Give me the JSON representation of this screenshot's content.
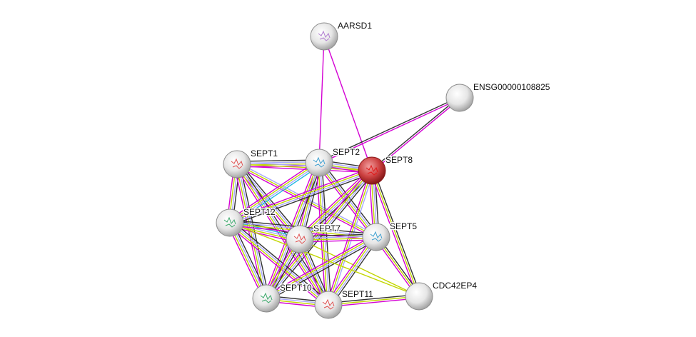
{
  "evidence_colors": {
    "experiments": "#d400d4",
    "textmining": "#c2d600",
    "coexpression": "#333333",
    "homology": "#a8a8ff",
    "databases": "#22b8e0"
  },
  "query_node_color": "#c83232",
  "nodes": [
    {
      "id": "AARSD1",
      "label": "AARSD1",
      "structure": true
    },
    {
      "id": "ENSG00000108825",
      "label": "ENSG00000108825",
      "structure": false
    },
    {
      "id": "SEPT1",
      "label": "SEPT1",
      "structure": true
    },
    {
      "id": "SEPT2",
      "label": "SEPT2",
      "structure": true
    },
    {
      "id": "SEPT8",
      "label": "SEPT8",
      "structure": true,
      "query": true
    },
    {
      "id": "SEPT12",
      "label": "SEPT12",
      "structure": true
    },
    {
      "id": "SEPT7",
      "label": "SEPT7",
      "structure": true
    },
    {
      "id": "SEPT5",
      "label": "SEPT5",
      "structure": true
    },
    {
      "id": "CDC42EP4",
      "label": "CDC42EP4",
      "structure": false
    },
    {
      "id": "SEPT10",
      "label": "SEPT10",
      "structure": true
    },
    {
      "id": "SEPT11",
      "label": "SEPT11",
      "structure": true
    }
  ],
  "edges": [
    {
      "source": "AARSD1",
      "target": "SEPT2",
      "evidence": [
        "experiments"
      ]
    },
    {
      "source": "AARSD1",
      "target": "SEPT8",
      "evidence": [
        "experiments"
      ]
    },
    {
      "source": "ENSG00000108825",
      "target": "SEPT2",
      "evidence": [
        "experiments",
        "coexpression"
      ]
    },
    {
      "source": "ENSG00000108825",
      "target": "SEPT8",
      "evidence": [
        "experiments",
        "coexpression"
      ]
    },
    {
      "source": "SEPT1",
      "target": "SEPT2",
      "evidence": [
        "coexpression",
        "homology",
        "textmining",
        "experiments"
      ]
    },
    {
      "source": "SEPT1",
      "target": "SEPT8",
      "evidence": [
        "homology",
        "textmining",
        "experiments"
      ]
    },
    {
      "source": "SEPT1",
      "target": "SEPT12",
      "evidence": [
        "coexpression",
        "homology",
        "textmining",
        "experiments"
      ]
    },
    {
      "source": "SEPT1",
      "target": "SEPT7",
      "evidence": [
        "coexpression",
        "homology",
        "textmining",
        "experiments"
      ]
    },
    {
      "source": "SEPT1",
      "target": "SEPT5",
      "evidence": [
        "homology",
        "textmining",
        "experiments"
      ]
    },
    {
      "source": "SEPT1",
      "target": "SEPT10",
      "evidence": [
        "coexpression",
        "homology",
        "textmining",
        "experiments"
      ]
    },
    {
      "source": "SEPT1",
      "target": "SEPT11",
      "evidence": [
        "coexpression",
        "homology",
        "textmining",
        "experiments"
      ]
    },
    {
      "source": "SEPT2",
      "target": "SEPT8",
      "evidence": [
        "coexpression",
        "homology",
        "textmining",
        "experiments"
      ]
    },
    {
      "source": "SEPT2",
      "target": "SEPT12",
      "evidence": [
        "databases",
        "homology",
        "textmining",
        "experiments"
      ]
    },
    {
      "source": "SEPT2",
      "target": "SEPT7",
      "evidence": [
        "coexpression",
        "homology",
        "textmining",
        "experiments"
      ]
    },
    {
      "source": "SEPT2",
      "target": "SEPT5",
      "evidence": [
        "coexpression",
        "homology",
        "textmining",
        "experiments"
      ]
    },
    {
      "source": "SEPT2",
      "target": "SEPT10",
      "evidence": [
        "coexpression",
        "homology",
        "textmining",
        "experiments"
      ]
    },
    {
      "source": "SEPT2",
      "target": "SEPT11",
      "evidence": [
        "coexpression",
        "homology",
        "textmining",
        "experiments"
      ]
    },
    {
      "source": "SEPT8",
      "target": "SEPT12",
      "evidence": [
        "coexpression",
        "homology",
        "textmining",
        "experiments"
      ]
    },
    {
      "source": "SEPT8",
      "target": "SEPT7",
      "evidence": [
        "coexpression",
        "homology",
        "textmining",
        "experiments"
      ]
    },
    {
      "source": "SEPT8",
      "target": "SEPT5",
      "evidence": [
        "coexpression",
        "homology",
        "textmining",
        "experiments"
      ]
    },
    {
      "source": "SEPT8",
      "target": "SEPT10",
      "evidence": [
        "coexpression",
        "homology",
        "textmining",
        "experiments"
      ]
    },
    {
      "source": "SEPT8",
      "target": "SEPT11",
      "evidence": [
        "homology",
        "textmining",
        "experiments"
      ]
    },
    {
      "source": "SEPT8",
      "target": "CDC42EP4",
      "evidence": [
        "coexpression",
        "textmining",
        "experiments"
      ]
    },
    {
      "source": "SEPT12",
      "target": "SEPT7",
      "evidence": [
        "coexpression",
        "databases",
        "homology",
        "textmining",
        "experiments"
      ]
    },
    {
      "source": "SEPT12",
      "target": "SEPT5",
      "evidence": [
        "coexpression",
        "homology",
        "textmining",
        "experiments"
      ]
    },
    {
      "source": "SEPT12",
      "target": "SEPT10",
      "evidence": [
        "coexpression",
        "homology",
        "textmining",
        "experiments"
      ]
    },
    {
      "source": "SEPT12",
      "target": "SEPT11",
      "evidence": [
        "coexpression",
        "homology",
        "textmining",
        "experiments"
      ]
    },
    {
      "source": "SEPT7",
      "target": "SEPT5",
      "evidence": [
        "coexpression",
        "homology",
        "textmining",
        "experiments"
      ]
    },
    {
      "source": "SEPT7",
      "target": "SEPT10",
      "evidence": [
        "coexpression",
        "homology",
        "textmining",
        "experiments"
      ]
    },
    {
      "source": "SEPT7",
      "target": "SEPT11",
      "evidence": [
        "coexpression",
        "homology",
        "textmining",
        "experiments"
      ]
    },
    {
      "source": "SEPT7",
      "target": "CDC42EP4",
      "evidence": [
        "textmining"
      ]
    },
    {
      "source": "SEPT5",
      "target": "SEPT10",
      "evidence": [
        "coexpression",
        "homology",
        "textmining",
        "experiments"
      ]
    },
    {
      "source": "SEPT5",
      "target": "SEPT11",
      "evidence": [
        "coexpression",
        "homology",
        "textmining",
        "experiments"
      ]
    },
    {
      "source": "SEPT5",
      "target": "CDC42EP4",
      "evidence": [
        "coexpression",
        "textmining",
        "experiments"
      ]
    },
    {
      "source": "SEPT10",
      "target": "SEPT11",
      "evidence": [
        "coexpression",
        "homology",
        "textmining",
        "experiments"
      ]
    },
    {
      "source": "SEPT11",
      "target": "CDC42EP4",
      "evidence": [
        "coexpression",
        "textmining",
        "experiments"
      ]
    },
    {
      "source": "SEPT12",
      "target": "CDC42EP4",
      "evidence": [
        "textmining"
      ]
    }
  ]
}
